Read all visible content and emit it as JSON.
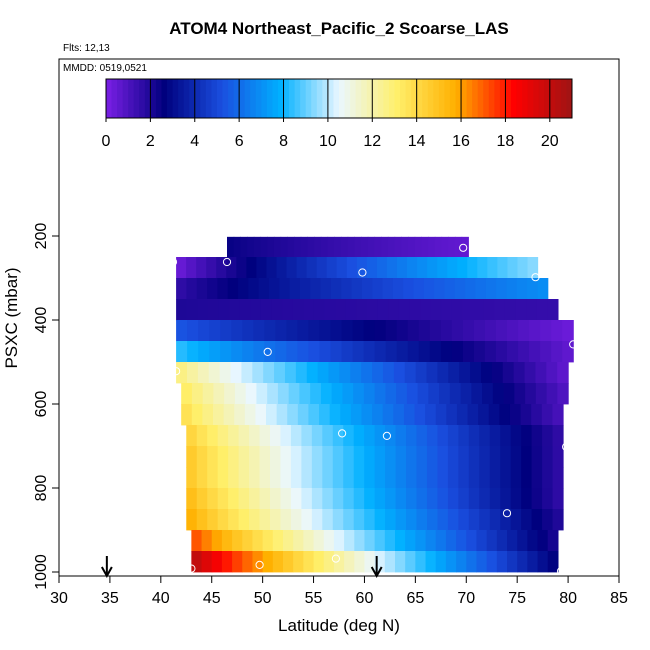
{
  "chart_data": {
    "type": "heatmap",
    "title": "ATOM4 Northeast_Pacific_2 Scoarse_LAS",
    "flights_label": "Flts: 12,13",
    "dates_label": "MMDD: 0519,0521",
    "xlabel": "Latitude (deg N)",
    "ylabel": "PSXC (mbar)",
    "xlim": [
      30,
      85
    ],
    "ylim": [
      1000,
      0
    ],
    "x_ticks": [
      30,
      35,
      40,
      45,
      50,
      55,
      60,
      65,
      70,
      75,
      80,
      85
    ],
    "y_ticks": [
      200,
      400,
      600,
      800,
      1000
    ],
    "colorbar": {
      "range": [
        0,
        21
      ],
      "ticks": [
        0,
        2,
        4,
        6,
        8,
        10,
        12,
        14,
        16,
        18,
        20
      ],
      "colors": [
        "#7b1fe6",
        "#00007e",
        "#1a4fe0",
        "#00b0ff",
        "#eaf7ff",
        "#ffef6a",
        "#ffb000",
        "#ff0000",
        "#9e1414"
      ]
    },
    "arrow_latitudes": [
      34.7,
      61.2
    ],
    "layers": [
      {
        "p": 227,
        "x0": 46.5,
        "x1": 70.2,
        "v0": 2.5,
        "v1": 0.5
      },
      {
        "p": 275,
        "x0": 41.5,
        "x1": 77.0,
        "v0": 0.2,
        "v1": 9.5
      },
      {
        "p": 325,
        "x0": 41.5,
        "x1": 78.0,
        "v0": 1.5,
        "v1": 7.0
      },
      {
        "p": 375,
        "x0": 41.5,
        "x1": 79.0,
        "v0": 2.0,
        "v1": 1.5
      },
      {
        "p": 425,
        "x0": 41.5,
        "x1": 80.5,
        "v0": 5.5,
        "v1": 0.3
      },
      {
        "p": 475,
        "x0": 41.5,
        "x1": 80.5,
        "v0": 8.5,
        "v1": 0.5
      },
      {
        "p": 525,
        "x0": 41.5,
        "x1": 80.0,
        "v0": 13.0,
        "v1": 0.5
      },
      {
        "p": 575,
        "x0": 42.0,
        "x1": 80.0,
        "v0": 13.5,
        "v1": 0.8
      },
      {
        "p": 625,
        "x0": 42.0,
        "x1": 79.5,
        "v0": 14.0,
        "v1": 1.0
      },
      {
        "p": 675,
        "x0": 42.5,
        "x1": 79.5,
        "v0": 14.5,
        "v1": 1.5
      },
      {
        "p": 725,
        "x0": 42.5,
        "x1": 79.5,
        "v0": 15.0,
        "v1": 1.5
      },
      {
        "p": 775,
        "x0": 42.5,
        "x1": 79.5,
        "v0": 15.0,
        "v1": 1.5
      },
      {
        "p": 825,
        "x0": 42.5,
        "x1": 79.5,
        "v0": 15.5,
        "v1": 1.5
      },
      {
        "p": 875,
        "x0": 42.5,
        "x1": 79.5,
        "v0": 16.0,
        "v1": 1.8
      },
      {
        "p": 925,
        "x0": 43.0,
        "x1": 79.0,
        "v0": 17.5,
        "v1": 2.0
      },
      {
        "p": 975,
        "x0": 43.0,
        "x1": 79.0,
        "v0": 20.5,
        "v1": 2.5
      }
    ],
    "sample_points": [
      {
        "lat": 69.7,
        "p": 228
      },
      {
        "lat": 46.5,
        "p": 262
      },
      {
        "lat": 41.2,
        "p": 262
      },
      {
        "lat": 59.8,
        "p": 287
      },
      {
        "lat": 76.8,
        "p": 298
      },
      {
        "lat": 80.5,
        "p": 458
      },
      {
        "lat": 50.5,
        "p": 476
      },
      {
        "lat": 41.5,
        "p": 522
      },
      {
        "lat": 57.8,
        "p": 670
      },
      {
        "lat": 62.2,
        "p": 676
      },
      {
        "lat": 79.8,
        "p": 702
      },
      {
        "lat": 74.0,
        "p": 860
      },
      {
        "lat": 57.2,
        "p": 968
      },
      {
        "lat": 49.7,
        "p": 983
      },
      {
        "lat": 43.0,
        "p": 992
      },
      {
        "lat": 79.3,
        "p": 998
      }
    ]
  }
}
